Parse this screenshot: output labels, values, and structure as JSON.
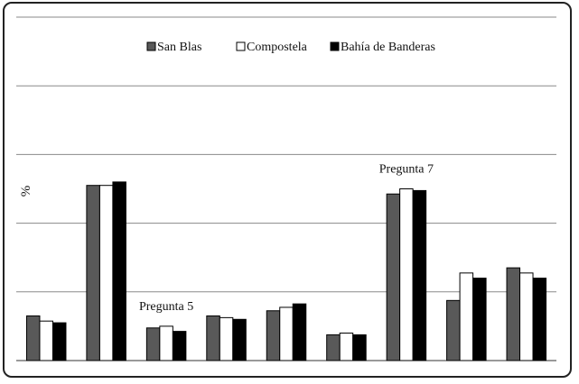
{
  "chart_data": {
    "type": "bar",
    "title": "",
    "ylabel": "%",
    "xlabel": "",
    "ylim": [
      0,
      100
    ],
    "grid": true,
    "legend": "top-center",
    "categories": [
      "",
      "",
      "",
      "",
      "",
      "",
      "",
      "",
      ""
    ],
    "series": [
      {
        "name": "San Blas",
        "color": "#595959",
        "values": [
          13,
          51,
          9.5,
          13,
          14.5,
          7.5,
          48.5,
          17.5,
          27
        ]
      },
      {
        "name": "Compostela",
        "color": "#ffffff",
        "values": [
          11.5,
          51,
          10,
          12.5,
          15.5,
          8,
          50,
          25.5,
          25.5
        ]
      },
      {
        "name": "Bahía de Banderas",
        "color": "#000000",
        "values": [
          11,
          52,
          8.5,
          12,
          16.5,
          7.5,
          49.5,
          24,
          24
        ]
      }
    ],
    "annotations": [
      {
        "text": "Pregunta 5",
        "category_index": 2
      },
      {
        "text": "Pregunta 7",
        "category_index": 6
      }
    ]
  }
}
